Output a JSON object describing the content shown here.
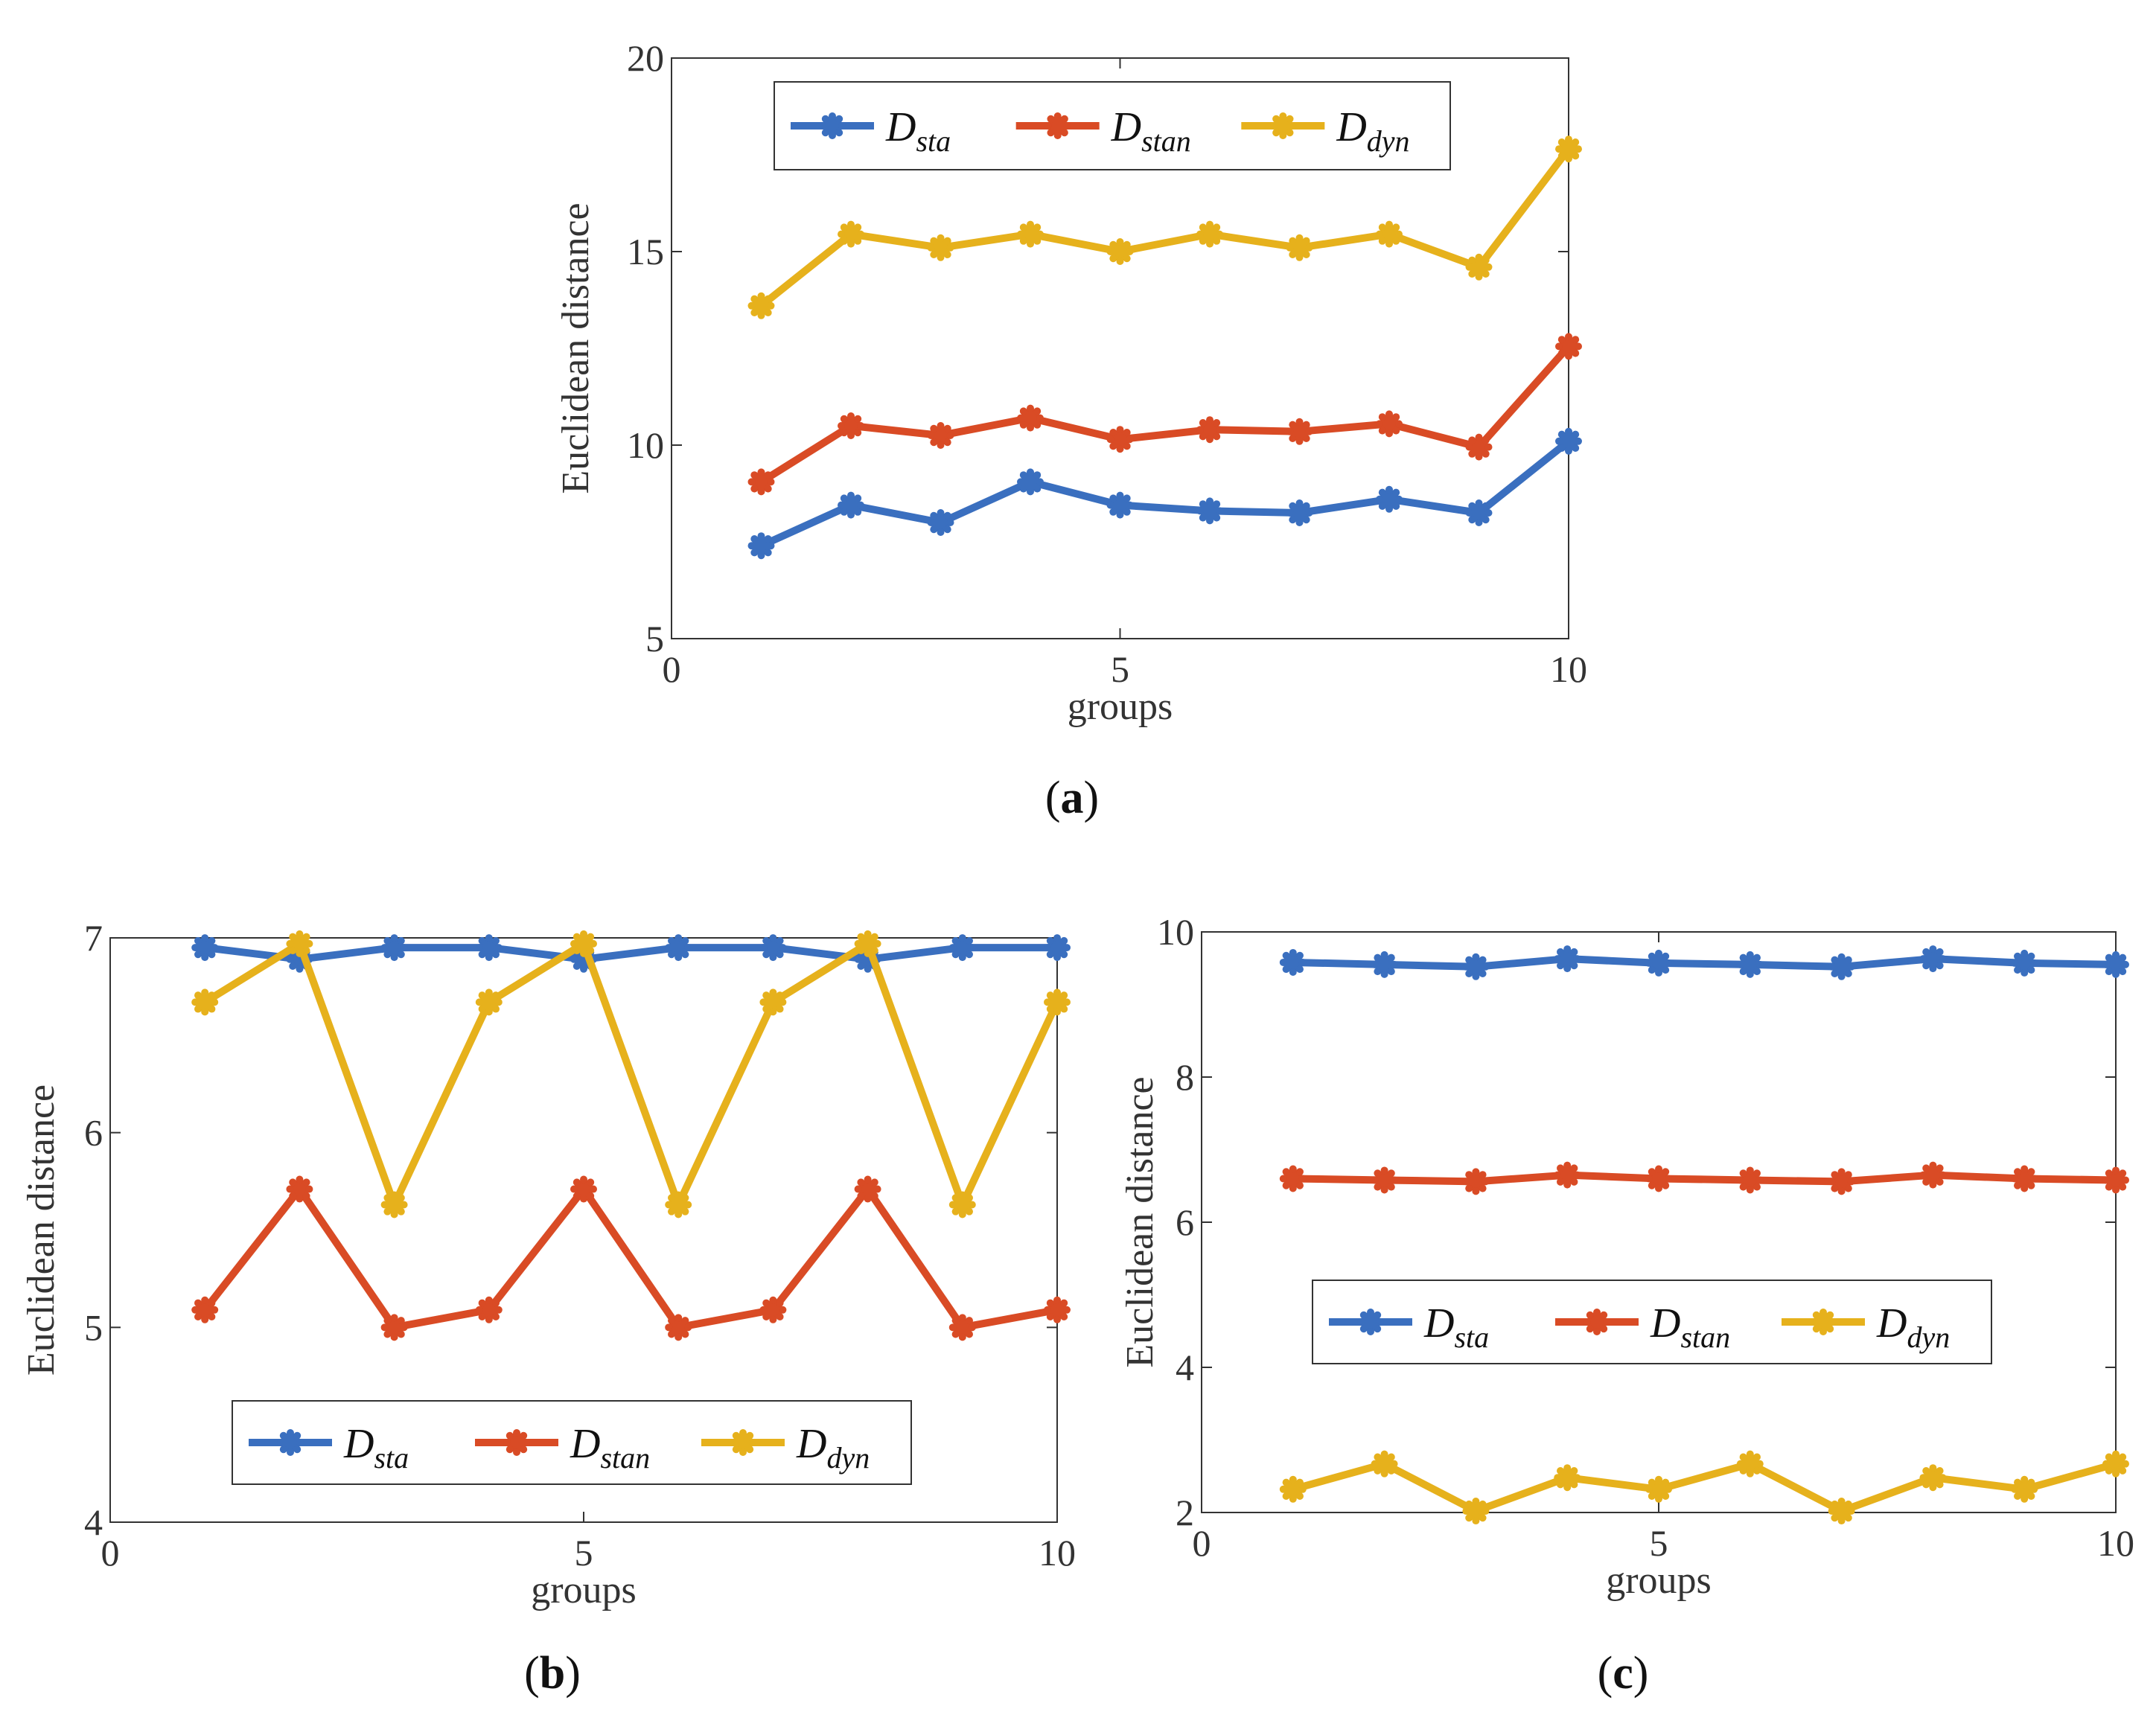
{
  "chart_data": [
    {
      "type": "line",
      "panel": "a",
      "caption_letter": "a",
      "xlabel": "groups",
      "ylabel": "Euclidean distance",
      "xlim": [
        0,
        10
      ],
      "ylim": [
        5,
        20
      ],
      "xticks": [
        "0",
        "5",
        "10"
      ],
      "yticks": [
        "5",
        "10",
        "15",
        "20"
      ],
      "x": [
        1,
        2,
        3,
        4,
        5,
        6,
        7,
        8,
        9,
        10
      ],
      "legend_position": "top",
      "series": [
        {
          "name": "D_sta",
          "label_main": "D",
          "label_sub": "sta",
          "color": "#3a6fbf",
          "values": [
            7.4,
            8.45,
            8.0,
            9.05,
            8.45,
            8.3,
            8.25,
            8.6,
            8.25,
            10.1
          ]
        },
        {
          "name": "D_stan",
          "label_main": "D",
          "label_sub": "stan",
          "color": "#d94b25",
          "values": [
            9.05,
            10.5,
            10.25,
            10.7,
            10.15,
            10.4,
            10.35,
            10.55,
            9.95,
            12.55
          ]
        },
        {
          "name": "D_dyn",
          "label_main": "D",
          "label_sub": "dyn",
          "color": "#e6b11c",
          "values": [
            13.6,
            15.45,
            15.1,
            15.45,
            15.0,
            15.45,
            15.1,
            15.45,
            14.6,
            17.65
          ]
        }
      ]
    },
    {
      "type": "line",
      "panel": "b",
      "caption_letter": "b",
      "xlabel": "groups",
      "ylabel": "Euclidean distance",
      "xlim": [
        0,
        10
      ],
      "ylim": [
        4,
        7
      ],
      "xticks": [
        "0",
        "5",
        "10"
      ],
      "yticks": [
        "4",
        "5",
        "6",
        "7"
      ],
      "x": [
        1,
        2,
        3,
        4,
        5,
        6,
        7,
        8,
        9,
        10
      ],
      "legend_position": "bottom",
      "series": [
        {
          "name": "D_sta",
          "label_main": "D",
          "label_sub": "sta",
          "color": "#3a6fbf",
          "values": [
            6.95,
            6.89,
            6.95,
            6.95,
            6.89,
            6.95,
            6.95,
            6.89,
            6.95,
            6.95
          ]
        },
        {
          "name": "D_stan",
          "label_main": "D",
          "label_sub": "stan",
          "color": "#d94b25",
          "values": [
            5.09,
            5.71,
            5.0,
            5.09,
            5.71,
            5.0,
            5.09,
            5.71,
            5.0,
            5.09
          ]
        },
        {
          "name": "D_dyn",
          "label_main": "D",
          "label_sub": "dyn",
          "color": "#e6b11c",
          "values": [
            6.67,
            6.97,
            5.63,
            6.67,
            6.97,
            5.63,
            6.67,
            6.97,
            5.63,
            6.67
          ]
        }
      ]
    },
    {
      "type": "line",
      "panel": "c",
      "caption_letter": "c",
      "xlabel": "groups",
      "ylabel": "Euclidean distance",
      "xlim": [
        0,
        10
      ],
      "ylim": [
        2,
        10
      ],
      "xticks": [
        "0",
        "5",
        "10"
      ],
      "yticks": [
        "2",
        "4",
        "6",
        "8",
        "10"
      ],
      "x": [
        1,
        2,
        3,
        4,
        5,
        6,
        7,
        8,
        9,
        10
      ],
      "legend_position": "middle-left",
      "series": [
        {
          "name": "D_sta",
          "label_main": "D",
          "label_sub": "sta",
          "color": "#3a6fbf",
          "values": [
            9.58,
            9.55,
            9.52,
            9.63,
            9.57,
            9.55,
            9.52,
            9.63,
            9.57,
            9.55
          ]
        },
        {
          "name": "D_stan",
          "label_main": "D",
          "label_sub": "stan",
          "color": "#d94b25",
          "values": [
            6.6,
            6.58,
            6.56,
            6.65,
            6.6,
            6.58,
            6.56,
            6.65,
            6.6,
            6.58
          ]
        },
        {
          "name": "D_dyn",
          "label_main": "D",
          "label_sub": "dyn",
          "color": "#e6b11c",
          "values": [
            2.32,
            2.67,
            2.02,
            2.48,
            2.32,
            2.67,
            2.02,
            2.48,
            2.32,
            2.67
          ]
        }
      ]
    }
  ]
}
